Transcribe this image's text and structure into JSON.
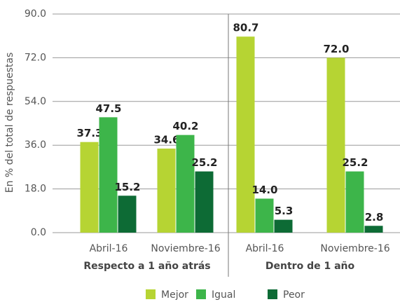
{
  "chart_data": {
    "type": "bar",
    "y_label": "En % del total de respuestas",
    "categories": [
      "Abril-16",
      "Noviembre-16",
      "Abril-16",
      "Noviembre-16"
    ],
    "groups": [
      "Respecto a 1 año atrás",
      "Dentro de 1 año"
    ],
    "series": [
      {
        "name": "Mejor",
        "color": "#b6d433",
        "values": [
          37.3,
          34.6,
          80.7,
          72.0
        ],
        "value_labels": [
          "37.3",
          "34.6",
          "80.7",
          "72.0"
        ]
      },
      {
        "name": "Igual",
        "color": "#3db54a",
        "values": [
          47.5,
          40.2,
          14.0,
          25.2
        ],
        "value_labels": [
          "47.5",
          "40.2",
          "14.0",
          "25.2"
        ]
      },
      {
        "name": "Peor",
        "color": "#0d6b35",
        "values": [
          15.2,
          25.2,
          5.3,
          2.8
        ],
        "value_labels": [
          "15.2",
          "25.2",
          "5.3",
          "2.8"
        ]
      }
    ],
    "ylim": [
      0,
      90
    ],
    "yticks": [
      {
        "value": 0,
        "label": "0.0"
      },
      {
        "value": 18,
        "label": "18.0"
      },
      {
        "value": 36,
        "label": "36.0"
      },
      {
        "value": 54,
        "label": "54.0"
      },
      {
        "value": 72,
        "label": "72.0"
      },
      {
        "value": 90,
        "label": "90.0"
      }
    ],
    "grid": true,
    "legend": "bottom"
  }
}
